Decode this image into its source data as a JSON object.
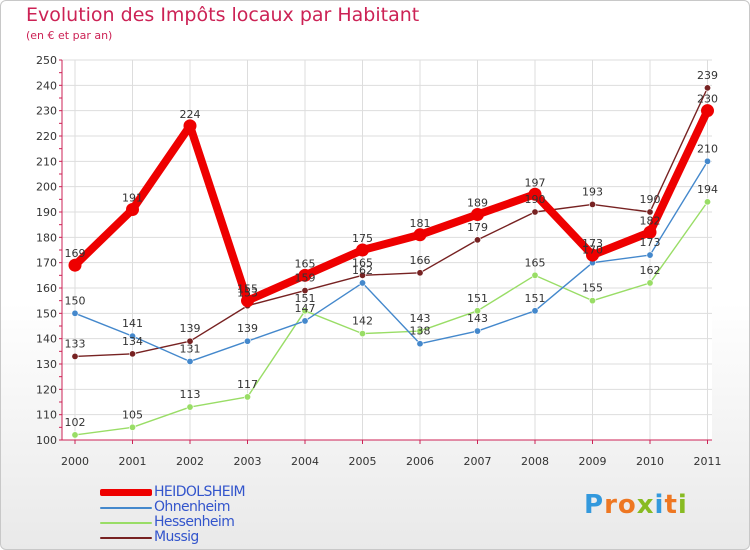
{
  "title": "Evolution des Impôts locaux par Habitant",
  "subtitle": "(en € et par an)",
  "logo": {
    "text": "Proxiti",
    "letter_colors": [
      "#3399dd",
      "#ee7722",
      "#ee7722",
      "#88bb22",
      "#3399dd",
      "#ee7722",
      "#88bb22"
    ]
  },
  "chart_data": {
    "type": "line",
    "title": "Evolution des Impôts locaux par Habitant",
    "ylabel": "(en € et par an)",
    "xlabel": "",
    "ylim": [
      100,
      250
    ],
    "y_ticks": [
      100,
      110,
      120,
      130,
      140,
      150,
      160,
      170,
      180,
      190,
      200,
      210,
      220,
      230,
      240,
      250
    ],
    "x": [
      "2000",
      "2001",
      "2002",
      "2003",
      "2004",
      "2005",
      "2006",
      "2007",
      "2008",
      "2009",
      "2010",
      "2011"
    ],
    "grid": true,
    "legend_position": "bottom-left",
    "series": [
      {
        "name": "HEIDOLSHEIM",
        "color": "#ee0000",
        "values": [
          169,
          191,
          224,
          155,
          165,
          175,
          181,
          189,
          197,
          173,
          182,
          230
        ],
        "labels": [
          "169",
          "191",
          "224",
          "155",
          "165",
          "175",
          "181",
          "189",
          "197",
          "173",
          "182",
          "230"
        ]
      },
      {
        "name": "Ohnenheim",
        "color": "#4488cc",
        "values": [
          150,
          141,
          131,
          139,
          147,
          162,
          138,
          143,
          151,
          170,
          173,
          210
        ],
        "labels": [
          "150",
          "141",
          "131",
          "139",
          "147",
          "162",
          "138",
          "143",
          "151",
          "170",
          "173",
          "210"
        ]
      },
      {
        "name": "Hessenheim",
        "color": "#99dd66",
        "values": [
          102,
          105,
          113,
          117,
          151,
          142,
          143,
          151,
          165,
          155,
          162,
          194
        ],
        "labels": [
          "102",
          "105",
          "113",
          "117",
          "151",
          "142",
          "143",
          "151",
          "165",
          "155",
          "162",
          "194"
        ]
      },
      {
        "name": "Mussig",
        "color": "#772222",
        "values": [
          133,
          134,
          139,
          153,
          159,
          165,
          166,
          179,
          190,
          193,
          190,
          239
        ],
        "labels": [
          "133",
          "134",
          "139",
          "153",
          "159",
          "165",
          "166",
          "179",
          "190",
          "193",
          "190",
          "239"
        ]
      }
    ]
  }
}
